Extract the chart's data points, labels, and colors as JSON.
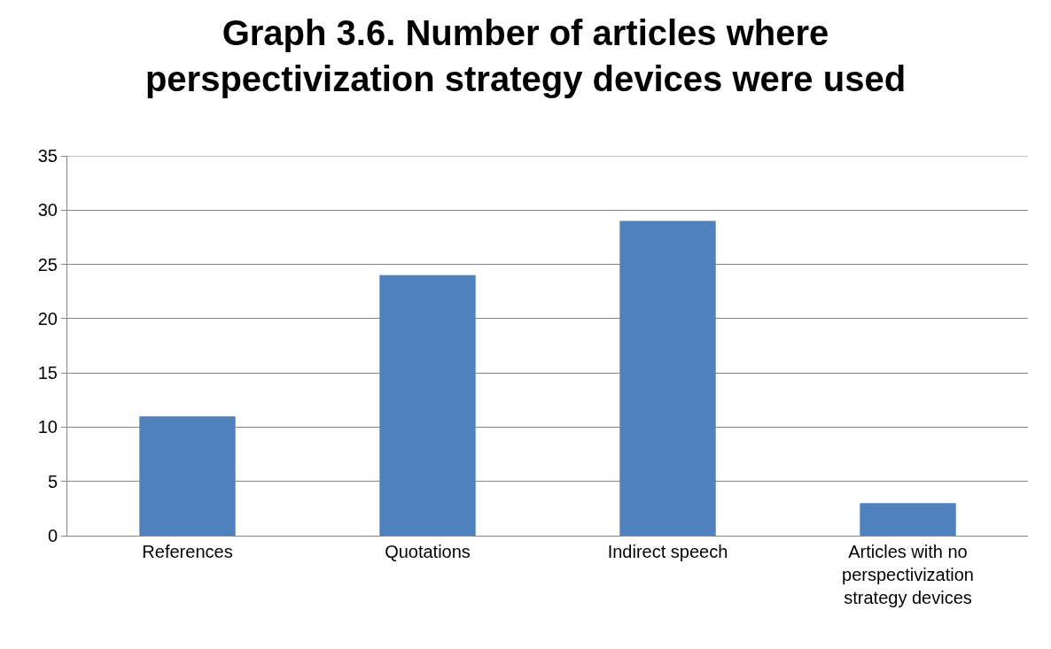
{
  "chart_data": {
    "type": "bar",
    "title": "Graph 3.6. Number of articles where perspectivization strategy devices were used",
    "categories": [
      "References",
      "Quotations",
      "Indirect speech",
      "Articles with no perspectivization strategy devices"
    ],
    "values": [
      11,
      24,
      29,
      3
    ],
    "color": "#4f81bd",
    "ylim": [
      0,
      35
    ],
    "yticks": [
      0,
      5,
      10,
      15,
      20,
      25,
      30,
      35
    ],
    "grid": "y"
  }
}
